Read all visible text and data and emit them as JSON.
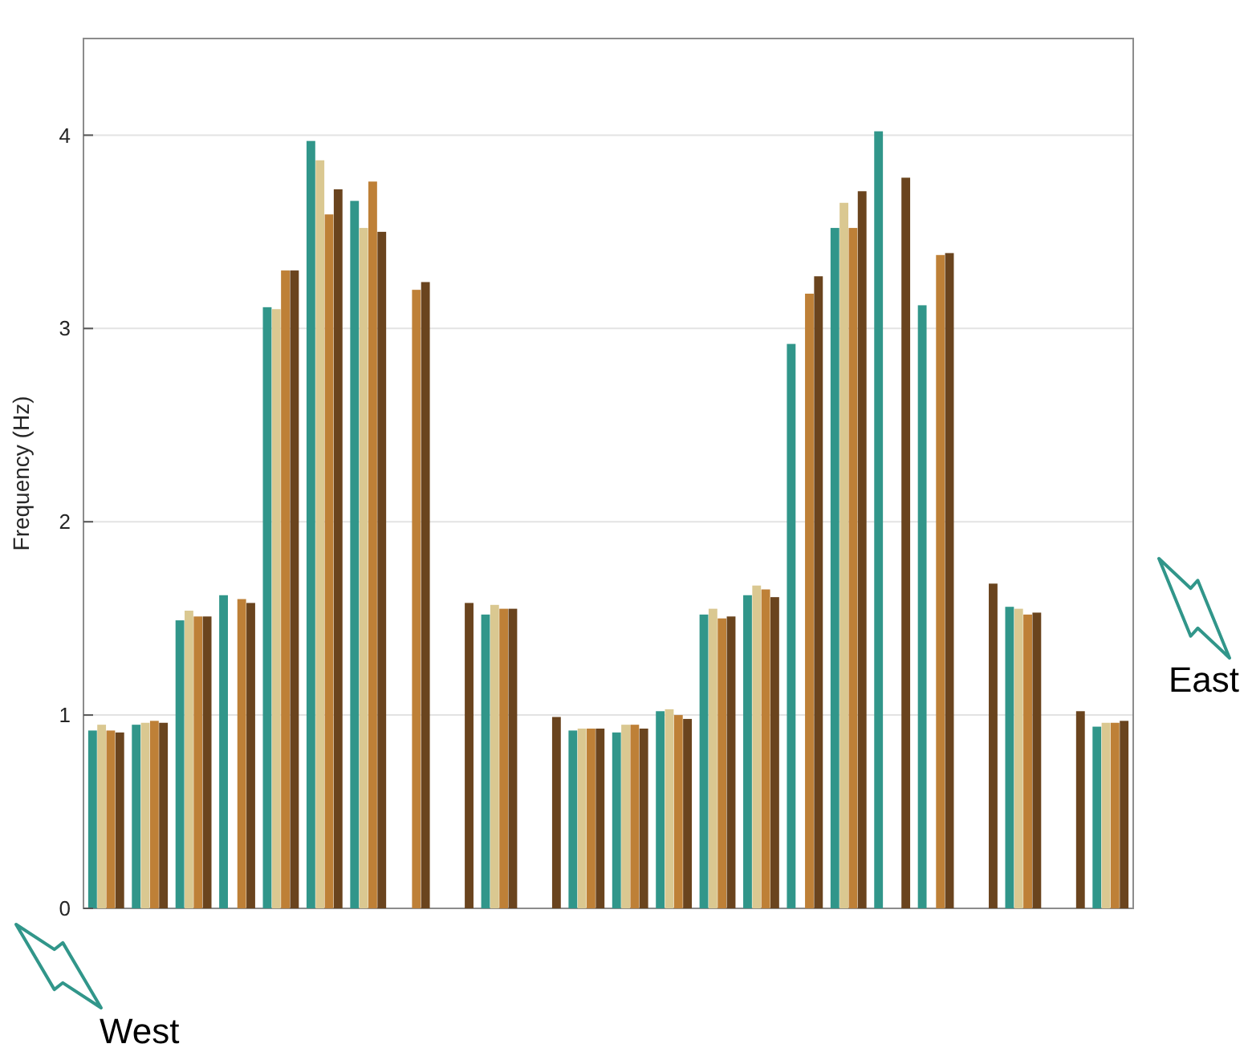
{
  "chart_data": {
    "type": "bar",
    "ylabel": "Frequency (Hz)",
    "categories": [
      null,
      null,
      null,
      null,
      null,
      null,
      null,
      null,
      null,
      null,
      null,
      null,
      null,
      null,
      null,
      null,
      null,
      null,
      null,
      null,
      null,
      null,
      null,
      null
    ],
    "series": [
      {
        "color": "#31968a",
        "values": [
          0.92,
          0.95,
          1.49,
          1.62,
          3.11,
          3.97,
          3.66,
          null,
          null,
          1.52,
          null,
          0.92,
          0.91,
          1.02,
          1.52,
          1.62,
          2.92,
          3.52,
          4.02,
          3.12,
          null,
          1.56,
          null,
          0.94
        ]
      },
      {
        "color": "#dac891",
        "values": [
          0.95,
          0.96,
          1.54,
          null,
          3.1,
          3.87,
          3.52,
          null,
          null,
          1.57,
          null,
          0.93,
          0.95,
          1.03,
          1.55,
          1.67,
          null,
          3.65,
          null,
          null,
          null,
          1.55,
          null,
          0.96
        ]
      },
      {
        "color": "#be8037",
        "values": [
          0.92,
          0.97,
          1.51,
          1.6,
          3.3,
          3.59,
          3.76,
          3.2,
          null,
          1.55,
          null,
          0.93,
          0.95,
          1.0,
          1.5,
          1.65,
          3.18,
          3.52,
          null,
          3.38,
          null,
          1.52,
          null,
          0.96
        ]
      },
      {
        "color": "#6a441e",
        "values": [
          0.91,
          0.96,
          1.51,
          1.58,
          3.3,
          3.72,
          3.5,
          3.24,
          1.58,
          1.55,
          0.99,
          0.93,
          0.93,
          0.98,
          1.51,
          1.61,
          3.27,
          3.71,
          3.78,
          3.39,
          1.68,
          1.53,
          1.02,
          0.97
        ]
      }
    ],
    "ylim": [
      0,
      4.5
    ],
    "yticks": [
      0,
      1,
      2,
      3,
      4
    ],
    "grid": "y",
    "tick_labels": "y",
    "annotations": [
      "West",
      "East"
    ]
  }
}
